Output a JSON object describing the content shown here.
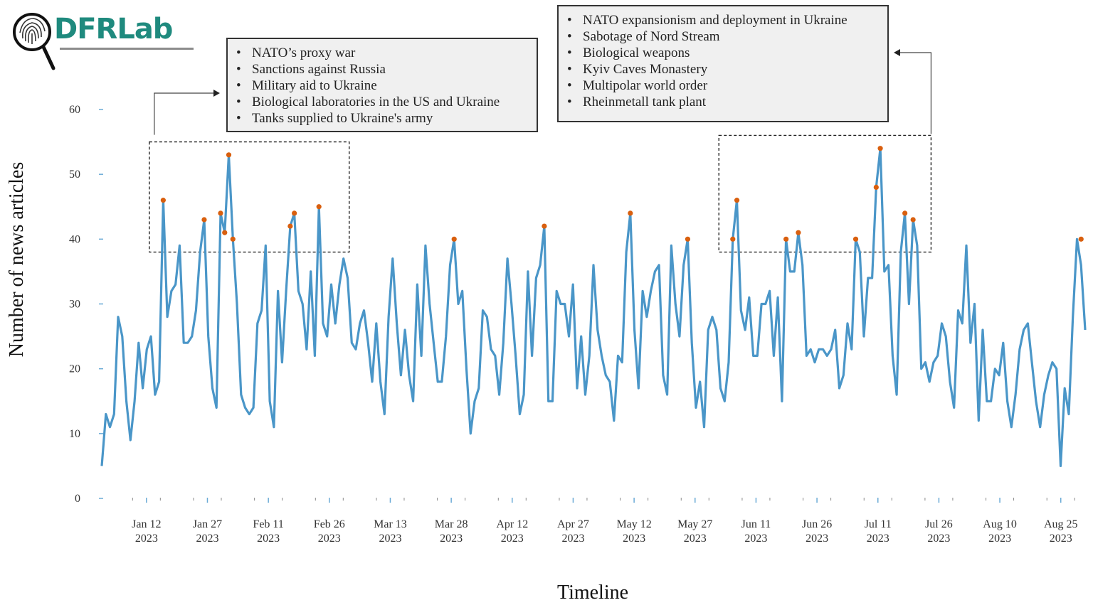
{
  "logo": {
    "text": "DFRLab",
    "icon": "fingerprint-magnifier-icon"
  },
  "annotations": [
    {
      "id": "early-2023",
      "items": [
        "NATO’s proxy war",
        "Sanctions against Russia",
        "Military aid to Ukraine",
        "Biological laboratories in the US and Ukraine",
        "Tanks supplied to Ukraine's army"
      ]
    },
    {
      "id": "mid-2023",
      "items": [
        "NATO expansionism and deployment in Ukraine",
        "Sabotage of Nord Stream",
        "Biological weapons",
        "Kyiv Caves Monastery",
        "Multipolar world order",
        "Rheinmetall tank plant"
      ]
    }
  ],
  "chart_data": {
    "type": "line",
    "title": "",
    "xlabel": "Timeline",
    "ylabel": "Number of news articles",
    "ylim": [
      0,
      60
    ],
    "yticks": [
      0,
      10,
      20,
      30,
      40,
      50,
      60
    ],
    "x_start": "2023-01-01",
    "x_end": "2023-08-31",
    "xticks": [
      {
        "date": "2023-01-12",
        "label": [
          "Jan 12",
          "2023"
        ]
      },
      {
        "date": "2023-01-27",
        "label": [
          "Jan 27",
          "2023"
        ]
      },
      {
        "date": "2023-02-11",
        "label": [
          "Feb 11",
          "2023"
        ]
      },
      {
        "date": "2023-02-26",
        "label": [
          "Feb 26",
          "2023"
        ]
      },
      {
        "date": "2023-03-13",
        "label": [
          "Mar 13",
          "2023"
        ]
      },
      {
        "date": "2023-03-28",
        "label": [
          "Mar 28",
          "2023"
        ]
      },
      {
        "date": "2023-04-12",
        "label": [
          "Apr 12",
          "2023"
        ]
      },
      {
        "date": "2023-04-27",
        "label": [
          "Apr 27",
          "2023"
        ]
      },
      {
        "date": "2023-05-12",
        "label": [
          "May 12",
          "2023"
        ]
      },
      {
        "date": "2023-05-27",
        "label": [
          "May 27",
          "2023"
        ]
      },
      {
        "date": "2023-06-11",
        "label": [
          "Jun 11",
          "2023"
        ]
      },
      {
        "date": "2023-06-26",
        "label": [
          "Jun 26",
          "2023"
        ]
      },
      {
        "date": "2023-07-11",
        "label": [
          "Jul 11",
          "2023"
        ]
      },
      {
        "date": "2023-07-26",
        "label": [
          "Jul 26",
          "2023"
        ]
      },
      {
        "date": "2023-08-10",
        "label": [
          "Aug 10",
          "2023"
        ]
      },
      {
        "date": "2023-08-25",
        "label": [
          "Aug 25",
          "2023"
        ]
      }
    ],
    "grid": false,
    "series": [
      {
        "name": "Daily news articles",
        "color": "#4a96c8",
        "values": [
          5,
          13,
          11,
          13,
          28,
          25,
          15,
          9,
          15,
          24,
          17,
          23,
          25,
          16,
          18,
          46,
          28,
          32,
          33,
          39,
          24,
          24,
          25,
          29,
          38,
          43,
          25,
          17,
          14,
          44,
          41,
          53,
          40,
          30,
          16,
          14,
          13,
          14,
          27,
          29,
          39,
          15,
          11,
          32,
          21,
          32,
          42,
          44,
          32,
          30,
          23,
          35,
          22,
          45,
          27,
          25,
          33,
          27,
          33,
          37,
          34,
          24,
          23,
          27,
          29,
          24,
          18,
          27,
          18,
          13,
          28,
          37,
          27,
          19,
          26,
          19,
          15,
          33,
          22,
          39,
          30,
          24,
          18,
          18,
          25,
          36,
          40,
          30,
          32,
          20,
          10,
          15,
          17,
          29,
          28,
          23,
          22,
          16,
          24,
          37,
          30,
          22,
          13,
          16,
          35,
          22,
          34,
          36,
          42,
          15,
          15,
          32,
          30,
          30,
          25,
          33,
          17,
          25,
          16,
          22,
          36,
          26,
          22,
          19,
          18,
          12,
          22,
          21,
          38,
          44,
          26,
          17,
          32,
          28,
          32,
          35,
          36,
          19,
          16,
          39,
          30,
          25,
          36,
          40,
          24,
          14,
          18,
          11,
          26,
          28,
          26,
          17,
          15,
          21,
          40,
          46,
          29,
          26,
          31,
          22,
          22,
          30,
          30,
          32,
          22,
          31,
          15,
          40,
          35,
          35,
          41,
          36,
          22,
          23,
          21,
          23,
          23,
          22,
          23,
          26,
          17,
          19,
          27,
          23,
          40,
          38,
          25,
          34,
          34,
          48,
          54,
          35,
          36,
          22,
          16,
          38,
          44,
          30,
          43,
          39,
          20,
          21,
          18,
          21,
          22,
          27,
          25,
          18,
          14,
          29,
          27,
          39,
          24,
          30,
          12,
          26,
          15,
          15,
          20,
          19,
          24,
          15,
          11,
          16,
          23,
          26,
          27,
          21,
          15,
          11,
          16,
          19,
          21,
          20,
          5,
          17,
          13,
          28,
          40,
          36,
          26
        ],
        "highlight_color": "#d95f0e",
        "highlights": [
          {
            "index": 15,
            "value": 46
          },
          {
            "index": 25,
            "value": 43
          },
          {
            "index": 29,
            "value": 44
          },
          {
            "index": 30,
            "value": 41
          },
          {
            "index": 31,
            "value": 53
          },
          {
            "index": 32,
            "value": 40
          },
          {
            "index": 46,
            "value": 42
          },
          {
            "index": 47,
            "value": 44
          },
          {
            "index": 53,
            "value": 45
          },
          {
            "index": 86,
            "value": 40
          },
          {
            "index": 108,
            "value": 42
          },
          {
            "index": 129,
            "value": 44
          },
          {
            "index": 143,
            "value": 40
          },
          {
            "index": 154,
            "value": 40
          },
          {
            "index": 155,
            "value": 46
          },
          {
            "index": 167,
            "value": 40
          },
          {
            "index": 170,
            "value": 41
          },
          {
            "index": 184,
            "value": 40
          },
          {
            "index": 189,
            "value": 48
          },
          {
            "index": 190,
            "value": 54
          },
          {
            "index": 196,
            "value": 44
          },
          {
            "index": 198,
            "value": 43
          },
          {
            "index": 239,
            "value": 40
          }
        ]
      }
    ],
    "highlight_regions": [
      {
        "from_index": 13,
        "to_index": 59,
        "y_from": 38,
        "y_to": 55,
        "annotation": "early-2023"
      },
      {
        "from_index": 152,
        "to_index": 201,
        "y_from": 38,
        "y_to": 56,
        "annotation": "mid-2023"
      }
    ]
  }
}
